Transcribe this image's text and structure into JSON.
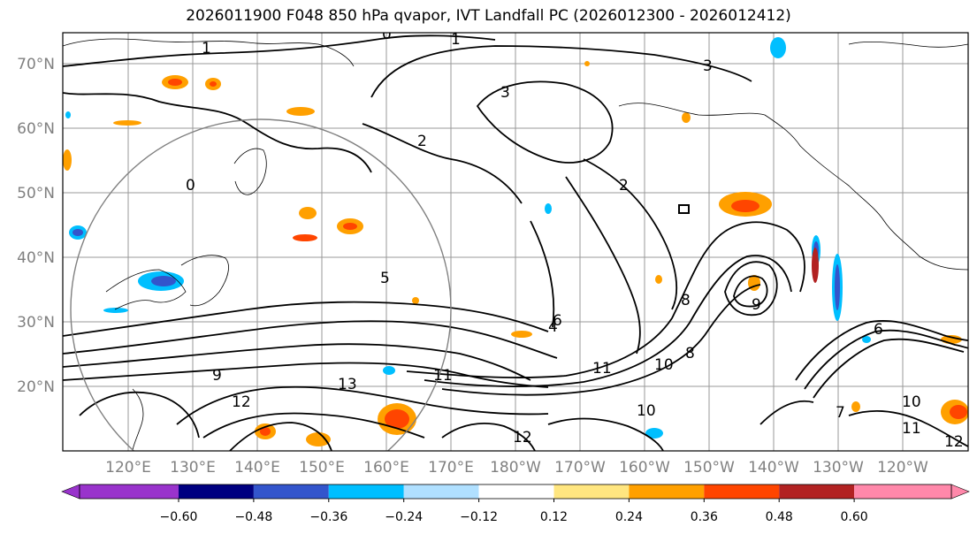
{
  "title": "2026011900 F048 850 hPa qvapor, IVT Landfall PC (2026012300 - 2026012412)",
  "lat_labels": [
    "70°N",
    "60°N",
    "50°N",
    "40°N",
    "30°N",
    "20°N"
  ],
  "lon_labels": [
    "120°E",
    "130°E",
    "140°E",
    "150°E",
    "160°E",
    "170°E",
    "180°W",
    "170°W",
    "160°W",
    "150°W",
    "140°W",
    "130°W",
    "120°W"
  ],
  "contour_labels": [
    "1",
    "0",
    "2",
    "3",
    "1",
    "0",
    "2",
    "4",
    "5",
    "3",
    "6",
    "8",
    "10",
    "11",
    "12",
    "13",
    "9",
    "10",
    "11",
    "12",
    "6",
    "7",
    "8",
    "9",
    "10",
    "11",
    "12"
  ],
  "colorbar": {
    "ticks": [
      "−0.60",
      "−0.48",
      "−0.36",
      "−0.24",
      "−0.12",
      "0.12",
      "0.24",
      "0.36",
      "0.48",
      "0.60"
    ],
    "colors": [
      "#9933cc",
      "#000080",
      "#3355cc",
      "#00bfff",
      "#b0e0ff",
      "#ffffff",
      "#ffe680",
      "#ffa000",
      "#ff4500",
      "#b22222",
      "#ff88aa"
    ]
  }
}
